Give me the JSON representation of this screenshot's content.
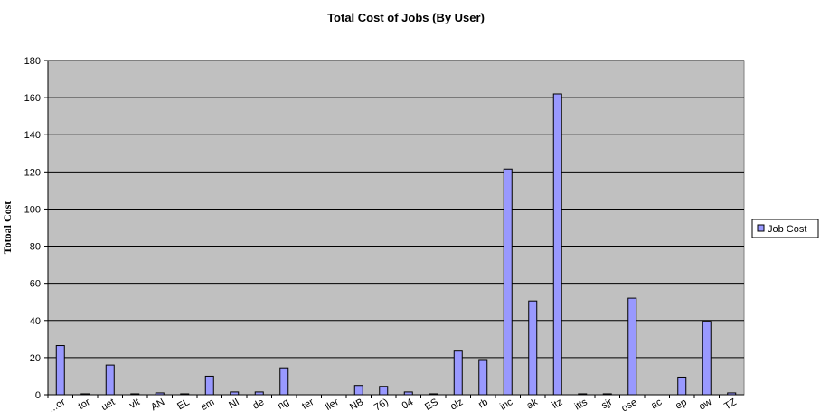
{
  "chart_data": {
    "type": "bar",
    "title": "Total Cost of Jobs (By User)",
    "xlabel": "",
    "ylabel": "Totoal Cost",
    "ylim": [
      0,
      180
    ],
    "yticks": [
      0,
      20,
      40,
      60,
      80,
      100,
      120,
      140,
      160,
      180
    ],
    "grid": true,
    "legend_position": "right",
    "categories": [
      "...or",
      "tor",
      "uet",
      "vlt",
      "AN",
      "EL",
      "em",
      "NI",
      "de",
      "ng",
      "ter",
      "ller",
      "NB",
      "76)",
      "04",
      "ES",
      "olz",
      "rb",
      "inc",
      "ak",
      "itz",
      "itts",
      "sjr",
      "ose",
      "ac",
      "ep",
      "ow",
      "TZ"
    ],
    "series": [
      {
        "name": "Job Cost",
        "color": "#9999ff",
        "values": [
          26.5,
          0.5,
          16,
          0.5,
          1,
          0.5,
          10,
          1.5,
          1.5,
          14.5,
          0,
          0,
          5,
          4.5,
          1.5,
          0.5,
          23.5,
          18.5,
          121.5,
          50.5,
          162,
          0.5,
          0.5,
          52,
          0,
          9.5,
          39.5,
          1
        ]
      }
    ],
    "plot_background": "#c0c0c0",
    "gridline_color": "#000000"
  }
}
